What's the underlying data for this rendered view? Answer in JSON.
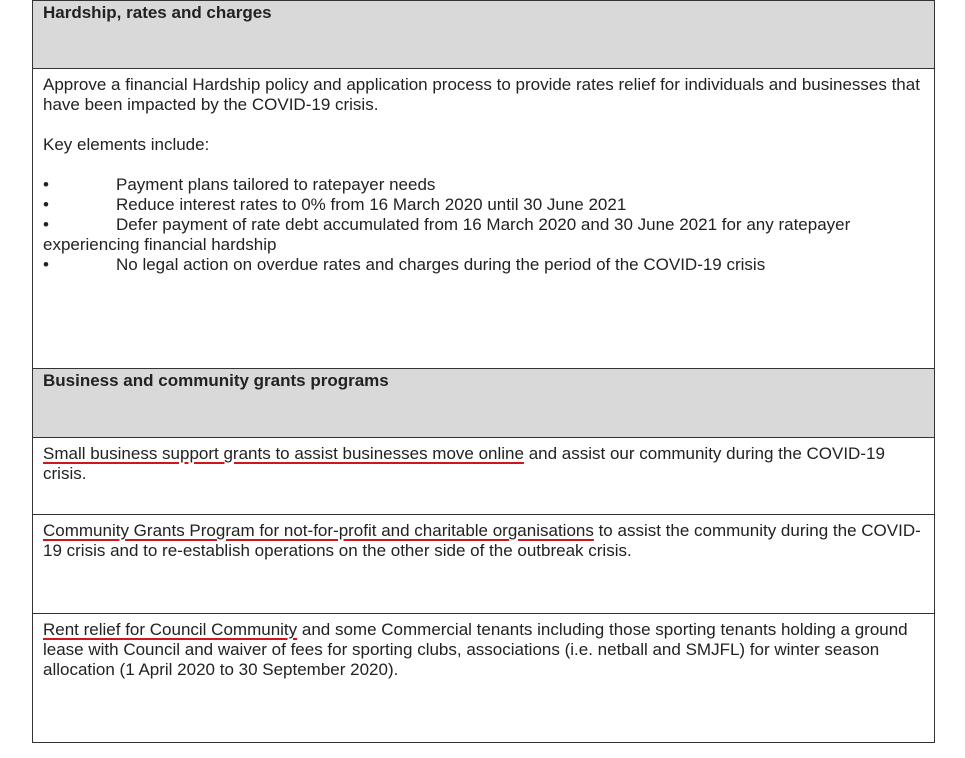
{
  "sections": [
    {
      "heading": "Hardship, rates and charges",
      "intro": "Approve a financial Hardship policy and application process to provide rates relief for individuals and businesses that have been impacted by the COVID-19 crisis.",
      "lead": "Key elements include:",
      "bullets": [
        "Payment plans tailored to ratepayer needs",
        "Reduce interest rates to 0% from 16 March 2020 until 30 June 2021",
        "Defer payment of rate debt accumulated from 16 March 2020 and 30 June 2021 for any ratepayer experiencing financial hardship",
        "No legal action on overdue rates and charges during the period of the COVID-19 crisis"
      ]
    },
    {
      "heading": "Business and community grants programs",
      "items": [
        {
          "underlined": "Small business support grants to assist businesses move online",
          "rest": " and assist our community during the COVID-19 crisis."
        },
        {
          "underlined": "Community Grants Program for not-for-profit and charitable organisations",
          "rest": " to assist the community during the COVID-19 crisis and to re-establish operations on the other side of the outbreak crisis."
        },
        {
          "underlined": "Rent relief for Council Community",
          "rest": " and some Commercial tenants including those sporting tenants holding a ground lease with Council and waiver of fees for sporting clubs, associations (i.e. netball and SMJFL) for winter season allocation (1 April 2020 to 30 September 2020)."
        }
      ]
    }
  ]
}
